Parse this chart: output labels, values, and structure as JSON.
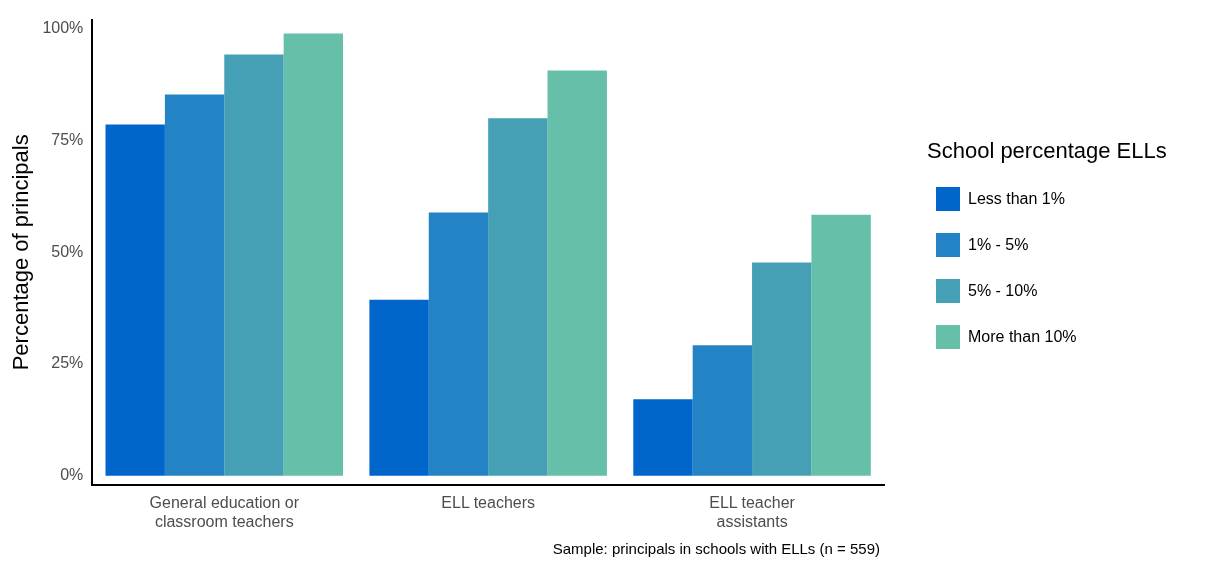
{
  "chart_data": {
    "type": "bar",
    "ylabel": "Percentage of principals",
    "legend_title": "School percentage ELLs",
    "legend": "right",
    "grid": false,
    "categories": [
      "General education or classroom teachers",
      "ELL teachers",
      "ELL teacher assistants"
    ],
    "series": [
      {
        "name": "Less than 1%",
        "color": "#0066cc",
        "values": [
          78.6,
          39.4,
          17.1
        ]
      },
      {
        "name": "1% - 5%",
        "color": "#2483c5",
        "values": [
          85.3,
          58.9,
          29.2
        ]
      },
      {
        "name": "5% - 10%",
        "color": "#46a0b5",
        "values": [
          94.3,
          80.0,
          47.7
        ]
      },
      {
        "name": "More than 10%",
        "color": "#66bfa8",
        "values": [
          99.0,
          90.7,
          58.4
        ]
      }
    ],
    "ylim": [
      -2,
      102
    ],
    "yticks": [
      {
        "value": 0,
        "label": "0%"
      },
      {
        "value": 25,
        "label": "25%"
      },
      {
        "value": 50,
        "label": "50%"
      },
      {
        "value": 75,
        "label": "75%"
      },
      {
        "value": 100,
        "label": "100%"
      }
    ],
    "annotations": [
      "Sample: principals in schools with ELLs (n = 559)"
    ]
  }
}
